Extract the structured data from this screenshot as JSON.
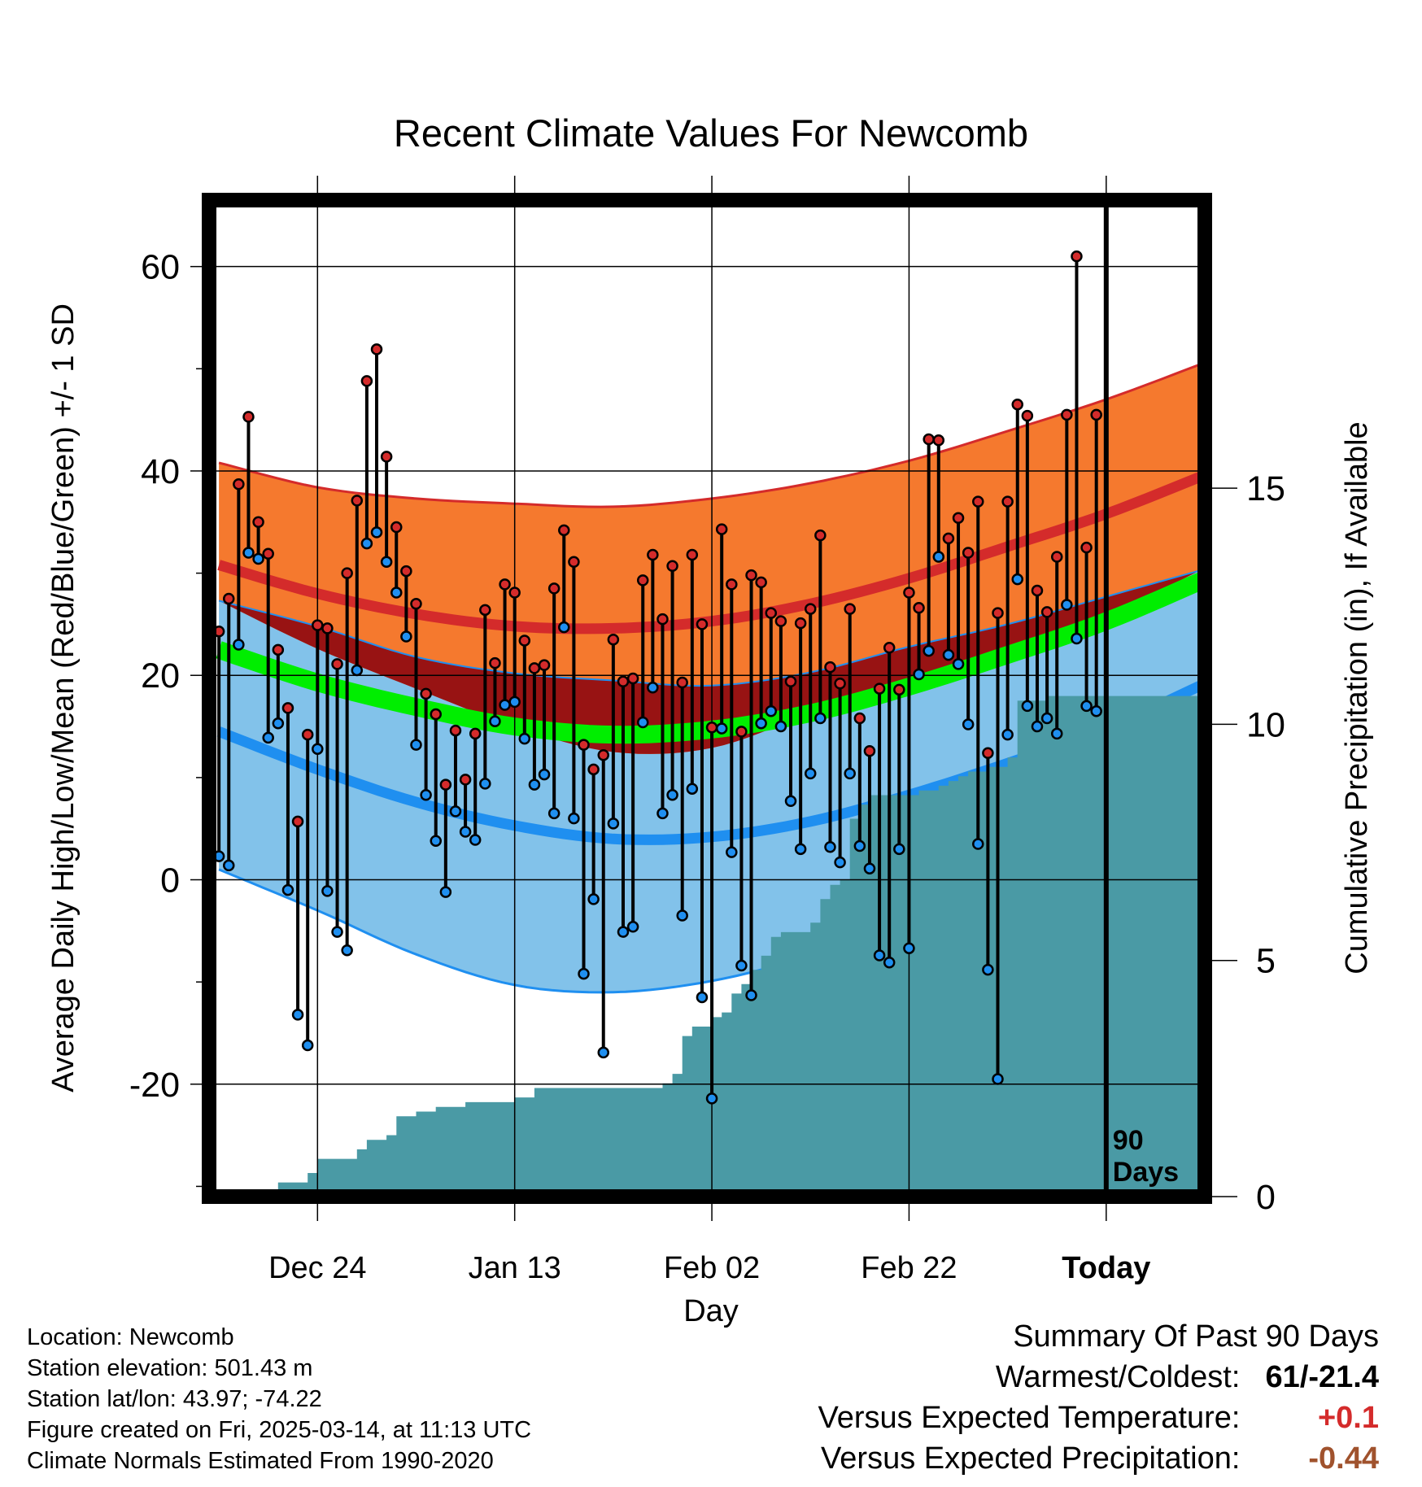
{
  "chart_data": {
    "type": "line",
    "title": "Recent Climate Values For Newcomb",
    "xlabel": "Day",
    "ylabel": "Average Daily High/Low/Mean (Red/Blue/Green) +/- 1 SD",
    "y2label": "Cumulative Precipitation (in), If Available",
    "xlim": [
      -1,
      100
    ],
    "ylim": [
      -31,
      66.5
    ],
    "y2lim": [
      0,
      21.1
    ],
    "grid": true,
    "x_tick_positions": [
      10,
      30,
      50,
      70,
      90
    ],
    "x_tick_labels": [
      "Dec 24",
      "Jan 13",
      "Feb 02",
      "Feb 22",
      "Today"
    ],
    "y_ticks": [
      -20,
      0,
      20,
      40,
      60
    ],
    "y_tick_labels": [
      "-20",
      "0",
      "20",
      "40",
      "60"
    ],
    "y2_ticks": [
      0,
      5,
      10,
      15
    ],
    "y2_tick_labels": [
      "0",
      "5",
      "10",
      "15"
    ],
    "today_marker": {
      "x": 90,
      "label_line1": "90",
      "label_line2": "Days"
    },
    "normal_high": {
      "x": [
        0,
        10,
        20,
        30,
        40,
        50,
        60,
        70,
        80,
        90,
        100
      ],
      "mean": [
        30.8,
        28.0,
        26.0,
        24.8,
        24.6,
        25.3,
        27.0,
        29.5,
        32.6,
        35.8,
        39.6
      ],
      "upper": [
        40.8,
        38.4,
        37.3,
        36.8,
        36.5,
        37.3,
        38.8,
        41.0,
        43.9,
        47.0,
        50.6
      ],
      "lower": [
        27.3,
        22.6,
        18.7,
        15.0,
        12.5,
        12.9,
        16.3,
        19.8,
        22.5,
        25.8,
        30.5
      ]
    },
    "normal_low": {
      "x": [
        0,
        10,
        20,
        30,
        40,
        50,
        60,
        70,
        80,
        90,
        100
      ],
      "mean": [
        14.5,
        10.8,
        7.6,
        5.3,
        4.0,
        4.2,
        5.7,
        8.3,
        11.4,
        14.8,
        19.2
      ],
      "upper": [
        27.3,
        24.8,
        21.8,
        20.2,
        19.5,
        19.0,
        20.3,
        22.8,
        25.0,
        27.7,
        30.4
      ],
      "lower": [
        1.0,
        -3.0,
        -7.3,
        -10.3,
        -11.0,
        -9.9,
        -7.5,
        -4.8,
        -1.0,
        2.5,
        7.5
      ]
    },
    "normal_mean": {
      "x": [
        0,
        10,
        20,
        30,
        40,
        50,
        60,
        70,
        80,
        90,
        100
      ],
      "values": [
        22.5,
        19.3,
        16.9,
        15.0,
        14.2,
        14.7,
        16.3,
        18.9,
        22.0,
        25.3,
        29.4
      ]
    },
    "series": [
      {
        "name": "Daily High",
        "color": "#d42b2b",
        "values": [
          24.3,
          27.5,
          38.7,
          45.3,
          35.0,
          31.9,
          22.5,
          16.8,
          5.7,
          14.2,
          24.9,
          24.6,
          21.1,
          30.0,
          37.1,
          48.8,
          51.9,
          41.4,
          34.5,
          30.2,
          27.0,
          18.2,
          16.2,
          9.3,
          14.6,
          9.8,
          14.3,
          26.4,
          21.2,
          28.9,
          28.1,
          23.4,
          20.7,
          21.0,
          28.5,
          34.2,
          31.1,
          13.2,
          10.8,
          12.2,
          23.5,
          19.4,
          19.7,
          29.3,
          31.8,
          25.5,
          30.7,
          19.3,
          31.8,
          25.0,
          14.9,
          34.3,
          28.9,
          14.5,
          29.8,
          29.1,
          26.1,
          25.3,
          19.4,
          25.1,
          26.5,
          33.7,
          20.8,
          19.2,
          26.5,
          15.8,
          12.6,
          18.7,
          22.7,
          18.6,
          28.1,
          26.6,
          43.1,
          43.0,
          33.4,
          35.4,
          32.0,
          37.0,
          12.4,
          26.1,
          37.0,
          46.5,
          45.4,
          28.3,
          26.2,
          31.6,
          45.5,
          61.0,
          32.5,
          45.5
        ]
      },
      {
        "name": "Daily Low",
        "color": "#1f8ff0",
        "values": [
          2.3,
          1.4,
          23.0,
          32.0,
          31.4,
          13.9,
          15.3,
          -1.0,
          -13.2,
          -16.2,
          12.8,
          -1.1,
          -5.1,
          -6.9,
          20.5,
          32.9,
          34.0,
          31.1,
          28.1,
          23.8,
          13.2,
          8.3,
          3.8,
          -1.2,
          6.7,
          4.7,
          3.9,
          9.4,
          15.5,
          17.1,
          17.4,
          13.8,
          9.3,
          10.3,
          6.5,
          24.7,
          6.0,
          -9.2,
          -1.9,
          -16.9,
          5.5,
          -5.1,
          -4.6,
          15.4,
          18.8,
          6.5,
          8.3,
          -3.5,
          8.9,
          -11.5,
          -21.4,
          14.8,
          2.7,
          -8.4,
          -11.3,
          15.3,
          16.5,
          15.0,
          7.7,
          3.0,
          10.4,
          15.8,
          3.2,
          1.7,
          10.4,
          3.3,
          1.1,
          -7.4,
          -8.1,
          3.0,
          -6.7,
          20.1,
          22.4,
          31.6,
          22.0,
          21.1,
          15.2,
          3.5,
          -8.8,
          -19.5,
          14.2,
          29.4,
          17.0,
          15.0,
          15.8,
          14.3,
          26.9,
          23.6,
          17.0,
          16.5
        ]
      },
      {
        "name": "Cumulative Precipitation",
        "color": "#4a9aa5",
        "x": [
          2,
          4,
          6,
          7,
          9,
          10,
          13,
          14,
          15,
          17,
          18,
          20,
          22,
          25,
          30,
          32,
          40,
          45,
          46,
          47,
          48,
          49,
          50,
          51,
          52,
          53,
          54,
          55,
          56,
          57,
          58,
          60,
          61,
          62,
          63,
          64,
          65,
          66,
          70,
          71,
          72,
          73,
          74,
          75,
          76,
          78,
          80,
          81,
          82,
          84,
          86,
          100
        ],
        "values": [
          0,
          0.1,
          0.3,
          0.3,
          0.5,
          0.8,
          0.8,
          1.0,
          1.2,
          1.3,
          1.7,
          1.8,
          1.9,
          2.0,
          2.1,
          2.3,
          2.3,
          2.4,
          2.6,
          3.4,
          3.6,
          3.6,
          3.8,
          3.9,
          4.3,
          4.5,
          4.8,
          5.1,
          5.5,
          5.6,
          5.6,
          5.8,
          6.3,
          6.6,
          6.7,
          8.0,
          8.3,
          8.5,
          8.5,
          8.6,
          8.6,
          8.7,
          8.8,
          8.9,
          9.0,
          9.1,
          9.3,
          10.5,
          10.5,
          10.6,
          10.6,
          10.6
        ]
      }
    ]
  },
  "info": {
    "location": "Location: Newcomb",
    "elevation": "Station elevation: 501.43 m",
    "latlon": "Station lat/lon: 43.97; -74.22",
    "created": "Figure created on Fri, 2025-03-14, at 11:13 UTC",
    "normals": "Climate Normals Estimated From 1990-2020"
  },
  "summary": {
    "title": "Summary Of Past 90 Days",
    "warmest_label": "Warmest/Coldest:",
    "warmest_value": "61/-21.4",
    "temp_label": "Versus Expected Temperature:",
    "temp_value": "+0.1",
    "precip_label": "Versus Expected Precipitation:",
    "precip_value": "-0.44"
  },
  "colors": {
    "high_band": "#f5792e",
    "high_mean": "#d42b2b",
    "overlap_band": "#981313",
    "low_band": "#82c2ea",
    "low_edge": "#1f8ff0",
    "low_mean": "#1f8ff0",
    "mean_band": "#00ee00",
    "precip": "#4a9aa5",
    "temp_diff": "#d42b2b",
    "precip_diff": "#a0522d"
  }
}
